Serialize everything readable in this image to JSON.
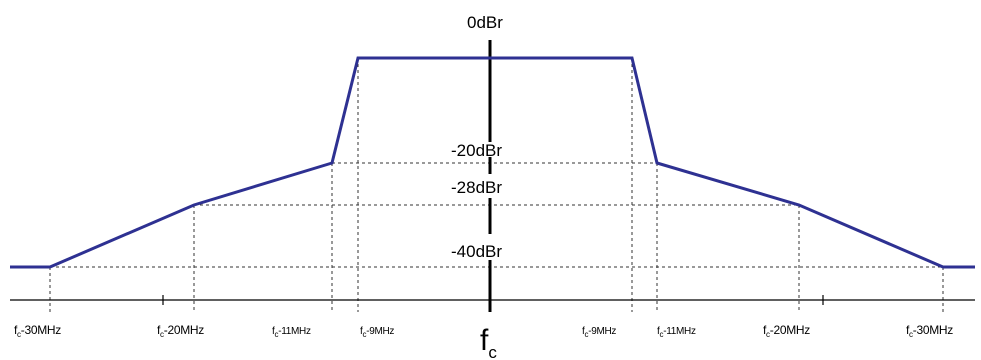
{
  "figure": {
    "levels": [
      {
        "key": "0dBr",
        "label": "0dBr"
      },
      {
        "key": "-20dBr",
        "label": "-20dBr"
      },
      {
        "key": "-28dBr",
        "label": "-28dBr"
      },
      {
        "key": "-40dBr",
        "label": "-40dBr"
      }
    ],
    "center_label": {
      "main": "f",
      "sub": "c"
    },
    "freq_labels": {
      "minus30": {
        "prefix": "f",
        "sub": "c",
        "text": "-30MHz"
      },
      "minus20": {
        "prefix": "f",
        "sub": "c",
        "text": "-20MHz"
      },
      "minus11": {
        "prefix": "f",
        "sub": "c",
        "text": "-11MHz"
      },
      "minus9": {
        "prefix": "f",
        "sub": "c",
        "text": "-9MHz"
      },
      "plus9": {
        "prefix": "f",
        "sub": "c",
        "text": "-9MHz"
      },
      "plus11": {
        "prefix": "f",
        "sub": "c",
        "text": "-11MHz"
      },
      "plus20": {
        "prefix": "f",
        "sub": "c",
        "text": "-20MHz"
      },
      "plus30": {
        "prefix": "f",
        "sub": "c",
        "text": "-30MHz"
      }
    },
    "colors": {
      "mask": "#2e3192",
      "axis": "#000000",
      "guide": "#333333"
    }
  }
}
